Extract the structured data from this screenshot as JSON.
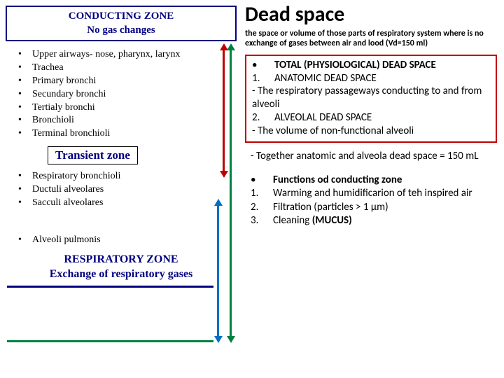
{
  "colors": {
    "navy": "#000080",
    "red": "#c00000",
    "green": "#008040",
    "blue": "#0070c0",
    "black": "#000000"
  },
  "left": {
    "conducting_header_l1": "CONDUCTING ZONE",
    "conducting_header_l2": "No gas changes",
    "items1": [
      "Upper airways- nose, pharynx, larynx",
      "Trachea",
      "Primary bronchi",
      "Secundary bronchi",
      "Tertialy bronchi",
      "Bronchioli",
      "Terminal bronchioli"
    ],
    "transient": "Transient zone",
    "items2": [
      "Respiratory bronchioli",
      "Ductuli alveolares",
      "Sacculi alveolares"
    ],
    "items3": [
      "Alveoli pulmonis"
    ],
    "resp_zone_l1": "RESPIRATORY ZONE",
    "resp_zone_l2": "Exchange of respiratory gases"
  },
  "right": {
    "title": "Dead space",
    "subtitle": "the space or volume of those parts of respiratory system where is no exchange of gases between air and lood (Vd=150 ml)",
    "box": {
      "bullet": "•",
      "total": "TOTAL (PHYSIOLOGICAL) DEAD SPACE",
      "n1": "1.",
      "anat": "ANATOMIC DEAD SPACE",
      "anat_desc": "- The respiratory passageways conducting to and from alveoli",
      "n2": "2.",
      "alv": "ALVEOLAL DEAD SPACE",
      "alv_desc": "- The volume of non-functional alveoli"
    },
    "together": "- Together anatomic and alveola dead space = 150 mL",
    "func_bullet": "•",
    "func_title": "Functions od conducting zone",
    "funcs": [
      {
        "n": "1.",
        "t": "Warming and humidificarion of teh inspired air"
      },
      {
        "n": "2.",
        "t": "Filtration (particles > 1 µm)"
      },
      {
        "n": "3.",
        "t_pre": "Cleaning ",
        "t_bold": "(MUCUS)"
      }
    ]
  }
}
